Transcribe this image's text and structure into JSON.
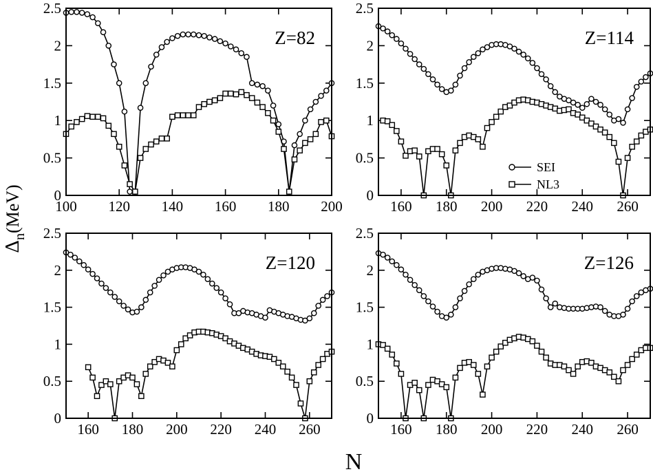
{
  "figure": {
    "ylabel_main": "Δ",
    "ylabel_sub": "n",
    "ylabel_unit": "(MeV)",
    "xlabel": "N"
  },
  "legend": {
    "items": [
      {
        "label": "SEI",
        "marker": "circle"
      },
      {
        "label": "NL3",
        "marker": "square"
      }
    ]
  },
  "chart_data": [
    {
      "type": "line",
      "title": "Z=82",
      "xlim": [
        100,
        200
      ],
      "ylim": [
        0,
        2.5
      ],
      "xticks": [
        100,
        120,
        140,
        160,
        180,
        200
      ],
      "yticks": [
        0,
        0.5,
        1,
        1.5,
        2,
        2.5
      ],
      "ytick_labels": [
        "0",
        "0.5",
        "1",
        "1.5",
        "2",
        "2.5"
      ],
      "series": [
        {
          "name": "SEI",
          "marker": "circle",
          "x": [
            100,
            102,
            104,
            106,
            108,
            110,
            112,
            114,
            116,
            118,
            120,
            122,
            124,
            126,
            128,
            130,
            132,
            134,
            136,
            138,
            140,
            142,
            144,
            146,
            148,
            150,
            152,
            154,
            156,
            158,
            160,
            162,
            164,
            166,
            168,
            170,
            172,
            174,
            176,
            178,
            180,
            182,
            184,
            186,
            188,
            190,
            192,
            194,
            196,
            198,
            200
          ],
          "y": [
            2.44,
            2.45,
            2.45,
            2.44,
            2.42,
            2.38,
            2.3,
            2.18,
            2.0,
            1.75,
            1.5,
            1.12,
            0.05,
            0.05,
            1.17,
            1.5,
            1.72,
            1.88,
            1.98,
            2.05,
            2.1,
            2.13,
            2.15,
            2.15,
            2.15,
            2.14,
            2.13,
            2.11,
            2.09,
            2.06,
            2.03,
            1.99,
            1.95,
            1.9,
            1.85,
            1.5,
            1.48,
            1.46,
            1.4,
            1.2,
            0.95,
            0.72,
            0.05,
            0.67,
            0.82,
            1.0,
            1.15,
            1.25,
            1.33,
            1.4,
            1.5
          ]
        },
        {
          "name": "NL3",
          "marker": "square",
          "x": [
            100,
            102,
            104,
            106,
            108,
            110,
            112,
            114,
            116,
            118,
            120,
            122,
            124,
            126,
            128,
            130,
            132,
            134,
            136,
            138,
            140,
            142,
            144,
            146,
            148,
            150,
            152,
            154,
            156,
            158,
            160,
            162,
            164,
            166,
            168,
            170,
            172,
            174,
            176,
            178,
            180,
            182,
            184,
            186,
            188,
            190,
            192,
            194,
            196,
            198,
            200
          ],
          "y": [
            0.82,
            0.92,
            0.98,
            1.02,
            1.06,
            1.05,
            1.05,
            1.03,
            0.93,
            0.82,
            0.65,
            0.4,
            0.15,
            0.05,
            0.5,
            0.62,
            0.68,
            0.72,
            0.76,
            0.76,
            1.05,
            1.07,
            1.07,
            1.07,
            1.07,
            1.18,
            1.22,
            1.25,
            1.27,
            1.3,
            1.36,
            1.36,
            1.35,
            1.38,
            1.34,
            1.3,
            1.24,
            1.18,
            1.1,
            1.0,
            0.85,
            0.62,
            0.05,
            0.48,
            0.6,
            0.7,
            0.75,
            0.82,
            0.98,
            1.0,
            0.79
          ]
        }
      ]
    },
    {
      "type": "line",
      "title": "Z=114",
      "xlim": [
        150,
        270
      ],
      "ylim": [
        0,
        2.5
      ],
      "xticks": [
        160,
        180,
        200,
        220,
        240,
        260
      ],
      "yticks": [
        0,
        0.5,
        1,
        1.5,
        2,
        2.5
      ],
      "ytick_labels": [
        "0",
        "0.5",
        "1",
        "1.5",
        "2",
        "2.5"
      ],
      "series": [
        {
          "name": "SEI",
          "marker": "circle",
          "x": [
            150,
            152,
            154,
            156,
            158,
            160,
            162,
            164,
            166,
            168,
            170,
            172,
            174,
            176,
            178,
            180,
            182,
            184,
            186,
            188,
            190,
            192,
            194,
            196,
            198,
            200,
            202,
            204,
            206,
            208,
            210,
            212,
            214,
            216,
            218,
            220,
            222,
            224,
            226,
            228,
            230,
            232,
            234,
            236,
            238,
            240,
            242,
            244,
            246,
            248,
            250,
            252,
            254,
            256,
            258,
            260,
            262,
            264,
            266,
            268,
            270
          ],
          "y": [
            2.26,
            2.23,
            2.19,
            2.14,
            2.09,
            2.03,
            1.96,
            1.89,
            1.82,
            1.75,
            1.69,
            1.62,
            1.55,
            1.48,
            1.42,
            1.38,
            1.4,
            1.48,
            1.6,
            1.7,
            1.78,
            1.85,
            1.9,
            1.95,
            1.98,
            2.01,
            2.02,
            2.02,
            2.01,
            1.99,
            1.96,
            1.92,
            1.88,
            1.83,
            1.77,
            1.7,
            1.62,
            1.55,
            1.46,
            1.38,
            1.32,
            1.29,
            1.27,
            1.24,
            1.21,
            1.17,
            1.22,
            1.29,
            1.25,
            1.21,
            1.15,
            1.08,
            1.0,
            1.02,
            0.97,
            1.15,
            1.3,
            1.45,
            1.52,
            1.58,
            1.63
          ]
        },
        {
          "name": "NL3",
          "marker": "square",
          "x": [
            152,
            154,
            156,
            158,
            160,
            162,
            164,
            166,
            168,
            170,
            172,
            174,
            176,
            178,
            180,
            182,
            184,
            186,
            188,
            190,
            192,
            194,
            196,
            198,
            200,
            202,
            204,
            206,
            208,
            210,
            212,
            214,
            216,
            218,
            220,
            222,
            224,
            226,
            228,
            230,
            232,
            234,
            236,
            238,
            240,
            242,
            244,
            246,
            248,
            250,
            252,
            254,
            256,
            258,
            260,
            262,
            264,
            266,
            268,
            270
          ],
          "y": [
            1.0,
            0.99,
            0.94,
            0.86,
            0.72,
            0.53,
            0.59,
            0.6,
            0.52,
            0.0,
            0.59,
            0.62,
            0.62,
            0.55,
            0.4,
            0.0,
            0.6,
            0.7,
            0.78,
            0.8,
            0.78,
            0.75,
            0.65,
            0.9,
            0.98,
            1.05,
            1.12,
            1.18,
            1.2,
            1.24,
            1.27,
            1.28,
            1.27,
            1.25,
            1.24,
            1.22,
            1.2,
            1.18,
            1.16,
            1.13,
            1.14,
            1.15,
            1.1,
            1.08,
            1.04,
            1.0,
            0.96,
            0.92,
            0.88,
            0.84,
            0.78,
            0.7,
            0.45,
            0.0,
            0.5,
            0.65,
            0.72,
            0.8,
            0.85,
            0.88
          ]
        }
      ]
    },
    {
      "type": "line",
      "title": "Z=120",
      "xlim": [
        150,
        270
      ],
      "ylim": [
        0,
        2.5
      ],
      "xticks": [
        160,
        180,
        200,
        220,
        240,
        260
      ],
      "yticks": [
        0,
        0.5,
        1,
        1.5,
        2,
        2.5
      ],
      "ytick_labels": [
        "0",
        "0.5",
        "1",
        "1.5",
        "2",
        "2.5"
      ],
      "series": [
        {
          "name": "SEI",
          "marker": "circle",
          "x": [
            150,
            152,
            154,
            156,
            158,
            160,
            162,
            164,
            166,
            168,
            170,
            172,
            174,
            176,
            178,
            180,
            182,
            184,
            186,
            188,
            190,
            192,
            194,
            196,
            198,
            200,
            202,
            204,
            206,
            208,
            210,
            212,
            214,
            216,
            218,
            220,
            222,
            224,
            226,
            228,
            230,
            232,
            234,
            236,
            238,
            240,
            242,
            244,
            246,
            248,
            250,
            252,
            254,
            256,
            258,
            260,
            262,
            264,
            266,
            268,
            270
          ],
          "y": [
            2.24,
            2.21,
            2.17,
            2.12,
            2.07,
            2.01,
            1.95,
            1.89,
            1.82,
            1.76,
            1.7,
            1.64,
            1.58,
            1.52,
            1.47,
            1.43,
            1.44,
            1.5,
            1.6,
            1.7,
            1.79,
            1.87,
            1.93,
            1.98,
            2.01,
            2.03,
            2.04,
            2.04,
            2.03,
            2.01,
            1.98,
            1.94,
            1.88,
            1.82,
            1.76,
            1.7,
            1.62,
            1.54,
            1.42,
            1.42,
            1.45,
            1.43,
            1.42,
            1.4,
            1.38,
            1.36,
            1.46,
            1.44,
            1.42,
            1.4,
            1.38,
            1.37,
            1.35,
            1.33,
            1.32,
            1.35,
            1.42,
            1.52,
            1.6,
            1.65,
            1.7
          ]
        },
        {
          "name": "NL3",
          "marker": "square",
          "x": [
            160,
            162,
            164,
            166,
            168,
            170,
            172,
            174,
            176,
            178,
            180,
            182,
            184,
            186,
            188,
            190,
            192,
            194,
            196,
            198,
            200,
            202,
            204,
            206,
            208,
            210,
            212,
            214,
            216,
            218,
            220,
            222,
            224,
            226,
            228,
            230,
            232,
            234,
            236,
            238,
            240,
            242,
            244,
            246,
            248,
            250,
            252,
            254,
            256,
            258,
            260,
            262,
            264,
            266,
            268,
            270
          ],
          "y": [
            0.69,
            0.55,
            0.3,
            0.45,
            0.5,
            0.46,
            0.0,
            0.5,
            0.55,
            0.58,
            0.55,
            0.46,
            0.3,
            0.6,
            0.7,
            0.76,
            0.8,
            0.78,
            0.75,
            0.7,
            0.92,
            1.0,
            1.08,
            1.12,
            1.16,
            1.17,
            1.17,
            1.16,
            1.15,
            1.13,
            1.11,
            1.08,
            1.04,
            1.01,
            0.98,
            0.95,
            0.93,
            0.9,
            0.87,
            0.85,
            0.84,
            0.83,
            0.8,
            0.75,
            0.7,
            0.63,
            0.55,
            0.45,
            0.2,
            0.0,
            0.5,
            0.62,
            0.72,
            0.8,
            0.87,
            0.9
          ]
        }
      ]
    },
    {
      "type": "line",
      "title": "Z=126",
      "xlim": [
        150,
        270
      ],
      "ylim": [
        0,
        2.5
      ],
      "xticks": [
        160,
        180,
        200,
        220,
        240,
        260
      ],
      "yticks": [
        0,
        0.5,
        1,
        1.5,
        2,
        2.5
      ],
      "ytick_labels": [
        "0",
        "0.5",
        "1",
        "1.5",
        "2",
        "2.5"
      ],
      "series": [
        {
          "name": "SEI",
          "marker": "circle",
          "x": [
            150,
            152,
            154,
            156,
            158,
            160,
            162,
            164,
            166,
            168,
            170,
            172,
            174,
            176,
            178,
            180,
            182,
            184,
            186,
            188,
            190,
            192,
            194,
            196,
            198,
            200,
            202,
            204,
            206,
            208,
            210,
            212,
            214,
            216,
            218,
            220,
            222,
            224,
            226,
            228,
            230,
            232,
            234,
            236,
            238,
            240,
            242,
            244,
            246,
            248,
            250,
            252,
            254,
            256,
            258,
            260,
            262,
            264,
            266,
            268,
            270
          ],
          "y": [
            2.23,
            2.21,
            2.17,
            2.12,
            2.07,
            2.01,
            1.94,
            1.87,
            1.8,
            1.73,
            1.65,
            1.58,
            1.51,
            1.44,
            1.38,
            1.36,
            1.4,
            1.5,
            1.62,
            1.72,
            1.81,
            1.88,
            1.94,
            1.98,
            2.0,
            2.02,
            2.03,
            2.03,
            2.02,
            2.01,
            1.99,
            1.96,
            1.92,
            1.88,
            1.9,
            1.86,
            1.74,
            1.62,
            1.5,
            1.55,
            1.5,
            1.49,
            1.48,
            1.48,
            1.48,
            1.48,
            1.49,
            1.5,
            1.51,
            1.5,
            1.45,
            1.4,
            1.38,
            1.38,
            1.4,
            1.48,
            1.58,
            1.65,
            1.7,
            1.73,
            1.75
          ]
        },
        {
          "name": "NL3",
          "marker": "square",
          "x": [
            150,
            152,
            154,
            156,
            158,
            160,
            162,
            164,
            166,
            168,
            170,
            172,
            174,
            176,
            178,
            180,
            182,
            184,
            186,
            188,
            190,
            192,
            194,
            196,
            198,
            200,
            202,
            204,
            206,
            208,
            210,
            212,
            214,
            216,
            218,
            220,
            222,
            224,
            226,
            228,
            230,
            232,
            234,
            236,
            238,
            240,
            242,
            244,
            246,
            248,
            250,
            252,
            254,
            256,
            258,
            260,
            262,
            264,
            266,
            268,
            270
          ],
          "y": [
            1.0,
            0.99,
            0.94,
            0.86,
            0.74,
            0.6,
            0.0,
            0.45,
            0.48,
            0.38,
            0.0,
            0.45,
            0.52,
            0.5,
            0.46,
            0.42,
            0.0,
            0.55,
            0.68,
            0.75,
            0.76,
            0.72,
            0.6,
            0.32,
            0.7,
            0.82,
            0.9,
            0.97,
            1.02,
            1.06,
            1.08,
            1.1,
            1.09,
            1.07,
            1.04,
            0.98,
            0.9,
            0.82,
            0.74,
            0.72,
            0.72,
            0.7,
            0.65,
            0.6,
            0.7,
            0.76,
            0.77,
            0.75,
            0.7,
            0.68,
            0.65,
            0.62,
            0.56,
            0.5,
            0.65,
            0.72,
            0.8,
            0.86,
            0.92,
            0.95,
            0.95
          ]
        }
      ]
    }
  ]
}
